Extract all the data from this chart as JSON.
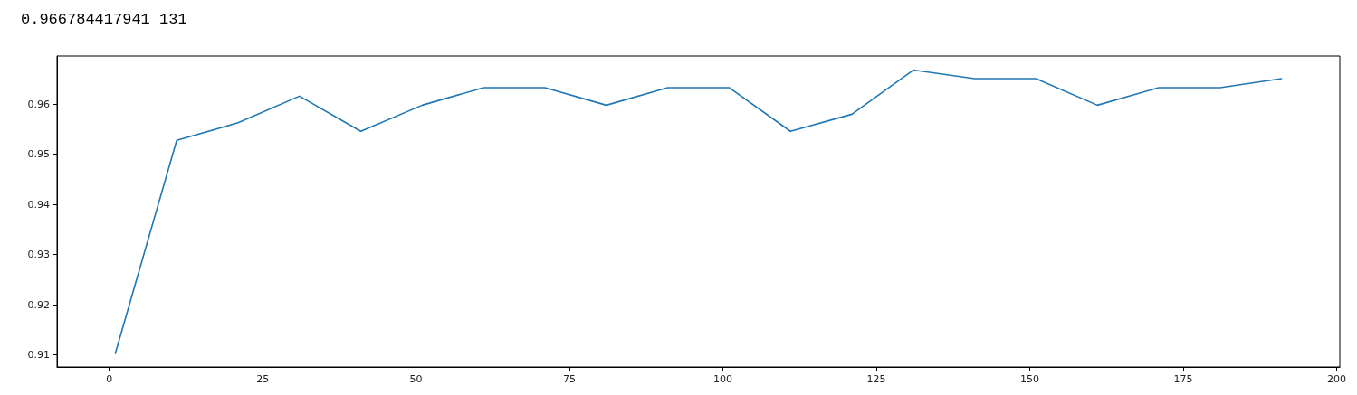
{
  "chart_data": {
    "type": "line",
    "title": "0.966784417941 131",
    "x": [
      1,
      11,
      21,
      31,
      41,
      51,
      61,
      71,
      81,
      91,
      101,
      111,
      121,
      131,
      141,
      151,
      161,
      171,
      181,
      191
    ],
    "series": [
      {
        "color": "#1f77b4",
        "values": [
          0.9103,
          0.9528,
          0.9563,
          0.9616,
          0.9546,
          0.9598,
          0.9633,
          0.9633,
          0.9598,
          0.9633,
          0.9633,
          0.9546,
          0.958,
          0.9668,
          0.9651,
          0.9651,
          0.9598,
          0.9633,
          0.9633,
          0.9651
        ]
      }
    ],
    "xlim": [
      -8.5,
      200.5
    ],
    "xticks": [
      0,
      25,
      50,
      75,
      100,
      125,
      150,
      175,
      200
    ],
    "ylim": [
      0.9076,
      0.9696
    ],
    "yticks": [
      0.91,
      0.92,
      0.93,
      0.94,
      0.95,
      0.96
    ],
    "grid": false,
    "marker": "none",
    "line_style": "solid"
  }
}
